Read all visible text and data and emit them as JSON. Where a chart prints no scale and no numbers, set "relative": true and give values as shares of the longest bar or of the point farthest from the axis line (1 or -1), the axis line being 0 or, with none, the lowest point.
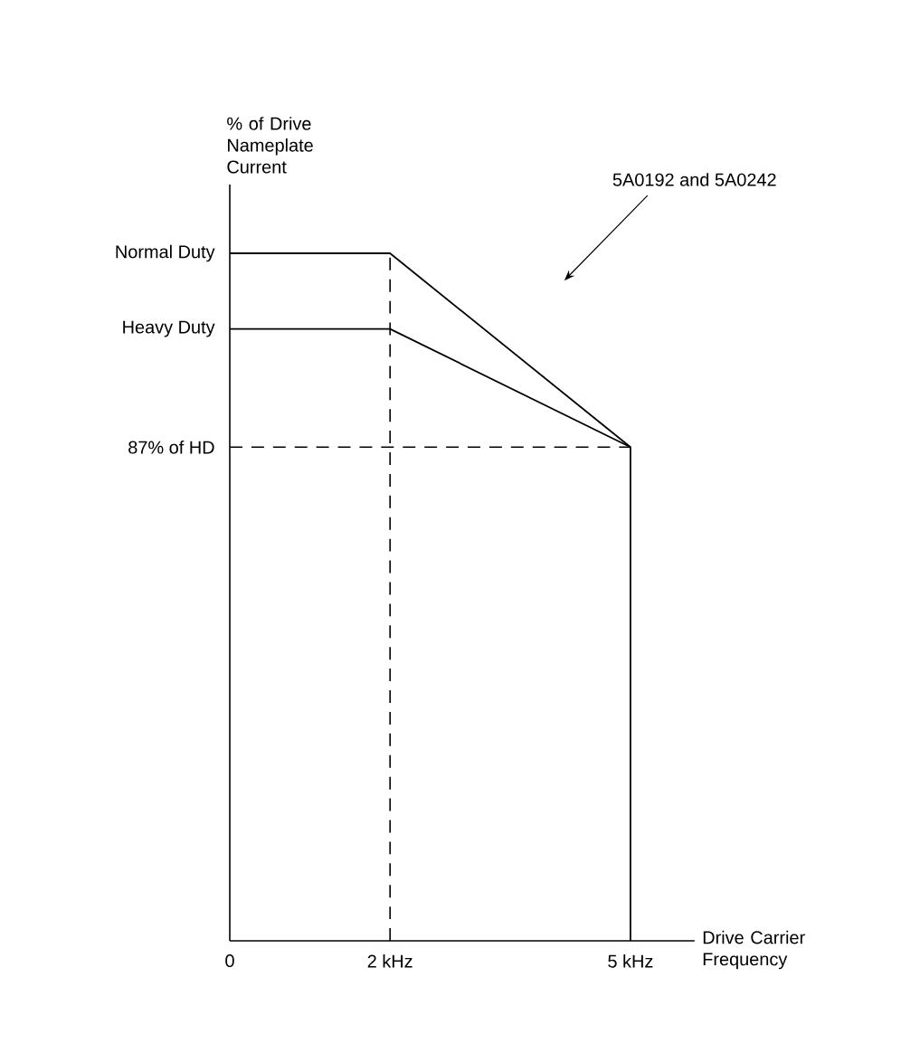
{
  "chart_data": {
    "type": "line",
    "xlabel": "Drive Carrier Frequency",
    "ylabel": "% of Drive Nameplate Current",
    "xlim": [
      0,
      5.8
    ],
    "relative": true,
    "xticks": [
      0,
      {
        "value": 2,
        "label": "2 kHz"
      },
      {
        "value": 5,
        "label": "5 kHz"
      }
    ],
    "series": [
      {
        "name": "Normal Duty",
        "color": "#000000",
        "x": [
          0,
          2,
          5,
          5
        ],
        "values": [
          1,
          1,
          0.718,
          0
        ]
      },
      {
        "name": "Heavy Duty",
        "color": "#000000",
        "x": [
          0,
          2,
          5
        ],
        "values": [
          0.89,
          0.89,
          0.718
        ]
      }
    ],
    "ref_lines": [
      {
        "axis": "x",
        "value": 2,
        "line_style": "dashed"
      },
      {
        "axis": "y",
        "value": 0.718,
        "line_style": "dashed",
        "label": "87% of HD"
      }
    ],
    "annotations": [
      "5A0192 and 5A0242"
    ],
    "grid": false,
    "legend": false,
    "marker": "none",
    "line_style": "solid"
  }
}
